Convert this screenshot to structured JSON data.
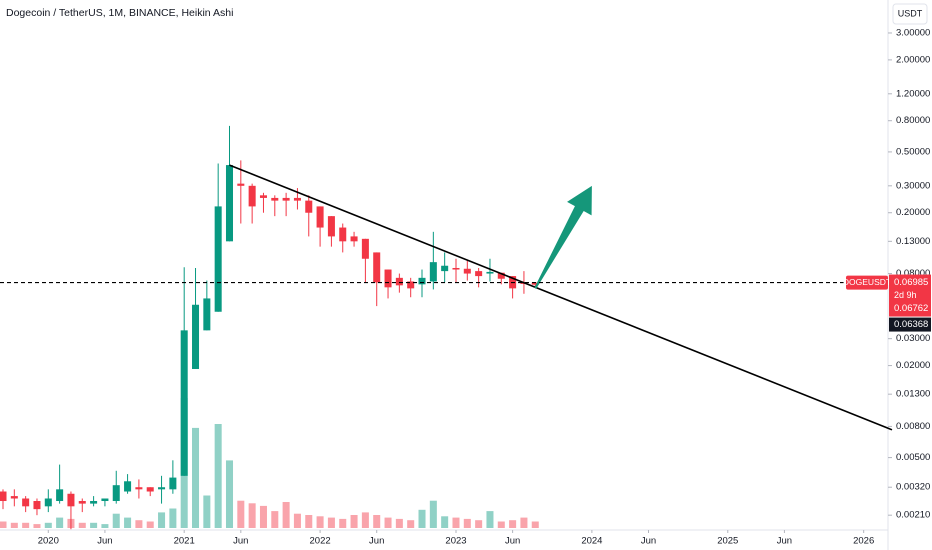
{
  "chart_data": {
    "type": "candlestick",
    "title": "Dogecoin / TetherUS, 1M, BINANCE, Heikin Ashi",
    "currency": "USDT",
    "log_scale": true,
    "up_color": "#089981",
    "down_color": "#f23645",
    "x": [
      "2019-09",
      "2019-10",
      "2019-11",
      "2019-12",
      "2020-01",
      "2020-02",
      "2020-03",
      "2020-04",
      "2020-05",
      "2020-06",
      "2020-07",
      "2020-08",
      "2020-09",
      "2020-10",
      "2020-11",
      "2020-12",
      "2021-01",
      "2021-02",
      "2021-03",
      "2021-04",
      "2021-05",
      "2021-06",
      "2021-07",
      "2021-08",
      "2021-09",
      "2021-10",
      "2021-11",
      "2021-12",
      "2022-01",
      "2022-02",
      "2022-03",
      "2022-04",
      "2022-05",
      "2022-06",
      "2022-07",
      "2022-08",
      "2022-09",
      "2022-10",
      "2022-11",
      "2022-12",
      "2023-01",
      "2023-02",
      "2023-03",
      "2023-04",
      "2023-05",
      "2023-06",
      "2023-07",
      "2023-08"
    ],
    "open": [
      0.003,
      0.0028,
      0.0027,
      0.0026,
      0.0024,
      0.0026,
      0.0029,
      0.0026,
      0.0025,
      0.0026,
      0.0026,
      0.003,
      0.0032,
      0.0032,
      0.0031,
      0.0031,
      0.0038,
      0.019,
      0.034,
      0.045,
      0.13,
      0.31,
      0.3,
      0.26,
      0.25,
      0.25,
      0.25,
      0.24,
      0.22,
      0.19,
      0.16,
      0.14,
      0.135,
      0.11,
      0.085,
      0.075,
      0.071,
      0.068,
      0.071,
      0.083,
      0.087,
      0.086,
      0.083,
      0.08,
      0.081,
      0.077,
      0.07,
      0.0698
    ],
    "high": [
      0.0031,
      0.0031,
      0.0028,
      0.0027,
      0.0031,
      0.0045,
      0.003,
      0.0027,
      0.0028,
      0.0027,
      0.0041,
      0.0039,
      0.0036,
      0.0032,
      0.0038,
      0.0048,
      0.088,
      0.087,
      0.072,
      0.42,
      0.74,
      0.44,
      0.31,
      0.27,
      0.26,
      0.27,
      0.29,
      0.26,
      0.22,
      0.19,
      0.17,
      0.15,
      0.135,
      0.11,
      0.085,
      0.08,
      0.075,
      0.085,
      0.15,
      0.11,
      0.1,
      0.097,
      0.087,
      0.1,
      0.081,
      0.077,
      0.083,
      0.07
    ],
    "low": [
      0.0023,
      0.0024,
      0.0022,
      0.0021,
      0.0022,
      0.0025,
      0.0017,
      0.0022,
      0.0024,
      0.0024,
      0.0025,
      0.0029,
      0.0027,
      0.0028,
      0.0025,
      0.0029,
      0.0038,
      0.019,
      0.034,
      0.045,
      0.13,
      0.17,
      0.17,
      0.2,
      0.19,
      0.19,
      0.21,
      0.14,
      0.12,
      0.12,
      0.11,
      0.12,
      0.07,
      0.049,
      0.055,
      0.06,
      0.056,
      0.056,
      0.063,
      0.07,
      0.07,
      0.072,
      0.065,
      0.071,
      0.068,
      0.055,
      0.059,
      0.065
    ],
    "close": [
      0.0026,
      0.0027,
      0.0024,
      0.0023,
      0.0027,
      0.0031,
      0.0024,
      0.0025,
      0.0026,
      0.0027,
      0.0033,
      0.0035,
      0.0031,
      0.003,
      0.0032,
      0.0037,
      0.034,
      0.05,
      0.055,
      0.22,
      0.41,
      0.3,
      0.22,
      0.25,
      0.24,
      0.24,
      0.24,
      0.2,
      0.16,
      0.14,
      0.13,
      0.13,
      0.1,
      0.07,
      0.065,
      0.067,
      0.064,
      0.075,
      0.095,
      0.09,
      0.085,
      0.08,
      0.077,
      0.082,
      0.074,
      0.064,
      0.069,
      0.06762
    ],
    "volume": [
      5,
      4,
      4,
      3,
      4,
      8,
      7,
      4,
      4,
      3,
      11,
      8,
      6,
      5,
      12,
      15,
      100,
      77,
      25,
      80,
      52,
      21,
      19,
      17,
      13,
      20,
      11,
      10,
      9,
      8,
      7,
      10,
      12,
      10,
      8,
      7,
      6,
      14,
      21,
      9,
      8,
      7,
      6,
      13,
      5,
      6,
      8,
      5
    ],
    "volume_max": 100,
    "xlim": [
      "2019-09",
      "2026-02"
    ],
    "xticks": [
      {
        "value": "2020-01",
        "label": "2020"
      },
      {
        "value": "2020-06",
        "label": "Jun"
      },
      {
        "value": "2021-01",
        "label": "2021"
      },
      {
        "value": "2021-06",
        "label": "Jun"
      },
      {
        "value": "2022-01",
        "label": "2022"
      },
      {
        "value": "2022-06",
        "label": "Jun"
      },
      {
        "value": "2023-01",
        "label": "2023"
      },
      {
        "value": "2023-06",
        "label": "Jun"
      },
      {
        "value": "2024-01",
        "label": "2024"
      },
      {
        "value": "2024-06",
        "label": "Jun"
      },
      {
        "value": "2025-01",
        "label": "2025"
      },
      {
        "value": "2025-06",
        "label": "Jun"
      },
      {
        "value": "2026-01",
        "label": "2026"
      }
    ],
    "ylim": [
      0.00168,
      4.93
    ],
    "yticks": [
      {
        "value": 3,
        "label": "3.00000"
      },
      {
        "value": 2,
        "label": "2.00000"
      },
      {
        "value": 1.2,
        "label": "1.20000"
      },
      {
        "value": 0.8,
        "label": "0.80000"
      },
      {
        "value": 0.5,
        "label": "0.50000"
      },
      {
        "value": 0.3,
        "label": "0.30000"
      },
      {
        "value": 0.2,
        "label": "0.20000"
      },
      {
        "value": 0.13,
        "label": "0.13000"
      },
      {
        "value": 0.08,
        "label": "0.08000"
      },
      {
        "value": 0.03,
        "label": "0.03000"
      },
      {
        "value": 0.02,
        "label": "0.02000"
      },
      {
        "value": 0.013,
        "label": "0.01300"
      },
      {
        "value": 0.008,
        "label": "0.00800"
      },
      {
        "value": 0.005,
        "label": "0.00500"
      },
      {
        "value": 0.0032,
        "label": "0.00320"
      },
      {
        "value": 0.0021,
        "label": "0.00210"
      }
    ],
    "symbol": "DOGEUSDT",
    "price_line": {
      "value": 0.06985,
      "label": "0.06985"
    },
    "countdown": "2d 9h",
    "price_labels": [
      {
        "value": 0.06762,
        "label": "0.06762"
      },
      {
        "value": 0.06368,
        "label": "0.06368"
      }
    ],
    "trend_line": [
      {
        "x": "2021-05",
        "y": 0.41
      },
      {
        "x": "2026-02",
        "y": 0.0076
      }
    ],
    "arrow": [
      {
        "x": "2023-08",
        "y": 0.064
      },
      {
        "x": "2024-01",
        "y": 0.3
      }
    ]
  }
}
